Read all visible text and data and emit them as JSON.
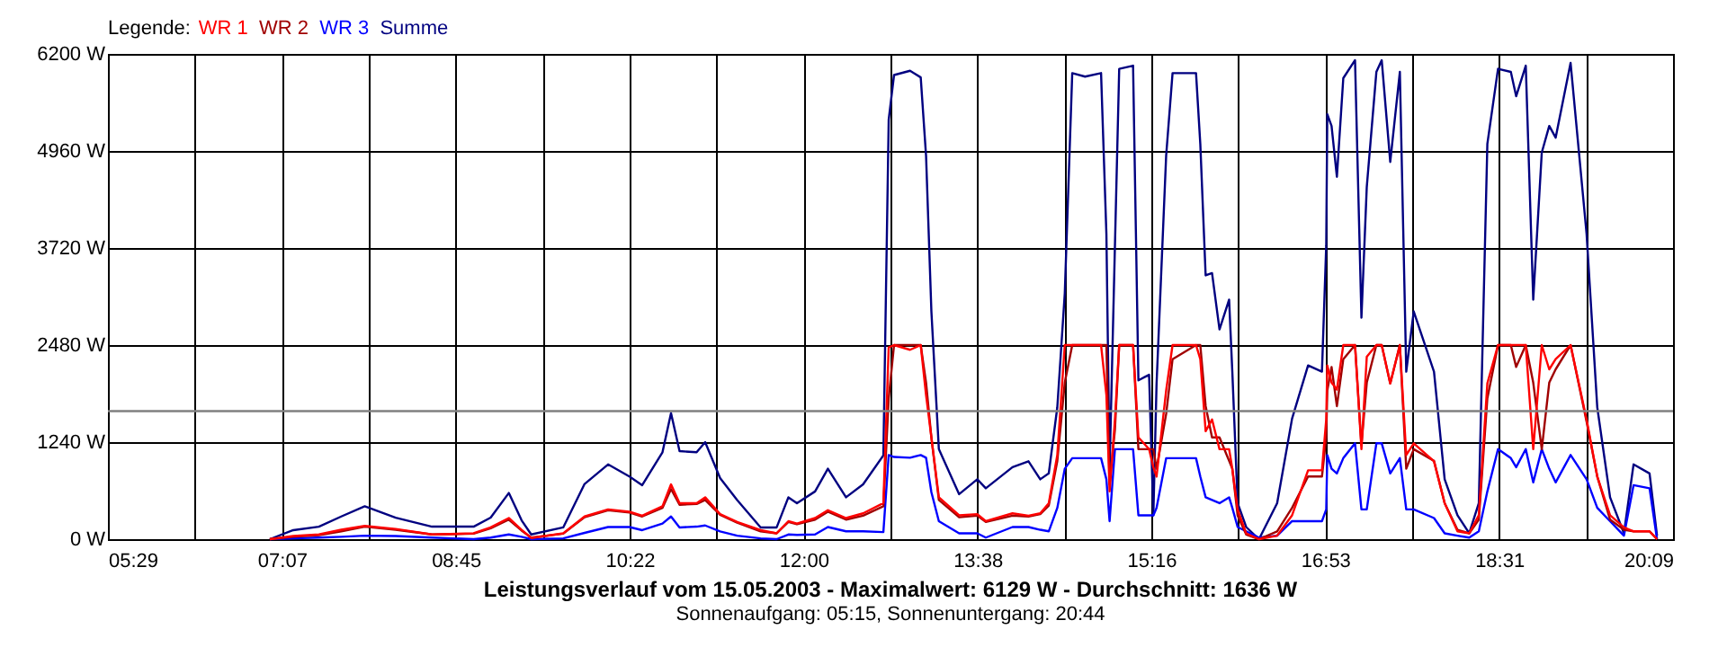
{
  "chart_data": {
    "type": "line",
    "title": "Leistungsverlauf vom 15.05.2003 - Maximalwert: 6129 W - Durchschnitt: 1636 W",
    "subtitle": "Sonnenaufgang: 05:15, Sonnenuntergang: 20:44",
    "legend_title": "Legende:",
    "legend": "top left",
    "grid": true,
    "x": [
      7.0,
      7.22,
      7.46,
      7.67,
      7.89,
      8.18,
      8.52,
      8.91,
      9.07,
      9.24,
      9.36,
      9.45,
      9.75,
      9.95,
      10.17,
      10.37,
      10.49,
      10.68,
      10.76,
      10.84,
      11.0,
      11.08,
      11.22,
      11.38,
      11.6,
      11.75,
      11.86,
      11.94,
      12.11,
      12.23,
      12.4,
      12.56,
      12.75,
      12.8,
      12.85,
      13.0,
      13.1,
      13.15,
      13.2,
      13.27,
      13.46,
      13.63,
      13.71,
      13.96,
      14.11,
      14.22,
      14.3,
      14.38,
      14.45,
      14.52,
      14.64,
      14.79,
      14.84,
      14.87,
      14.92,
      14.96,
      15.09,
      15.14,
      15.24,
      15.28,
      15.31,
      15.4,
      15.46,
      15.68,
      15.72,
      15.77,
      15.83,
      15.9,
      15.99,
      16.02,
      16.07,
      16.15,
      16.27,
      16.44,
      16.58,
      16.73,
      16.86,
      16.9,
      16.91,
      16.95,
      17.0,
      17.06,
      17.17,
      17.23,
      17.28,
      17.37,
      17.42,
      17.5,
      17.59,
      17.65,
      17.72,
      17.91,
      18.01,
      18.13,
      18.24,
      18.33,
      18.41,
      18.51,
      18.63,
      18.68,
      18.77,
      18.84,
      18.92,
      18.99,
      19.05,
      19.19,
      19.34,
      19.44,
      19.56,
      19.69,
      19.78,
      19.93,
      20.0
    ],
    "series": [
      {
        "name": "WR 1",
        "color": "#ff0000",
        "values": [
          0,
          40,
          60,
          120,
          170,
          130,
          60,
          75,
          150,
          270,
          120,
          15,
          75,
          290,
          380,
          350,
          300,
          420,
          700,
          460,
          460,
          535,
          320,
          220,
          115,
          75,
          230,
          200,
          270,
          370,
          270,
          330,
          460,
          2450,
          2480,
          2420,
          2480,
          1840,
          1300,
          535,
          305,
          320,
          230,
          330,
          300,
          330,
          460,
          1075,
          2480,
          2480,
          2480,
          2480,
          1840,
          610,
          1530,
          2480,
          2480,
          1300,
          1150,
          920,
          800,
          1900,
          2480,
          2480,
          2300,
          1380,
          1530,
          1150,
          1150,
          900,
          380,
          75,
          0,
          45,
          305,
          880,
          880,
          1530,
          2220,
          2000,
          1910,
          2480,
          2480,
          1150,
          2330,
          2480,
          2480,
          1990,
          2480,
          1075,
          1225,
          995,
          460,
          100,
          75,
          305,
          1990,
          2480,
          2480,
          2480,
          2480,
          1150,
          2480,
          2170,
          2300,
          2480,
          1530,
          800,
          305,
          150,
          100,
          100,
          0
        ]
      },
      {
        "name": "WR 2",
        "color": "#a00000",
        "values": [
          0,
          30,
          50,
          100,
          160,
          120,
          60,
          70,
          140,
          250,
          110,
          20,
          70,
          280,
          370,
          340,
          290,
          400,
          640,
          440,
          450,
          500,
          310,
          210,
          100,
          75,
          220,
          190,
          250,
          350,
          250,
          300,
          420,
          1800,
          2480,
          2480,
          2480,
          2000,
          1300,
          500,
          280,
          300,
          220,
          300,
          290,
          320,
          430,
          1000,
          2000,
          2480,
          2480,
          2480,
          2480,
          700,
          1400,
          2480,
          2480,
          1150,
          1150,
          1150,
          900,
          1600,
          2300,
          2480,
          2480,
          1700,
          1300,
          1300,
          1000,
          900,
          300,
          60,
          0,
          100,
          400,
          800,
          800,
          1300,
          1900,
          2200,
          1700,
          2300,
          2480,
          1200,
          2000,
          2480,
          2480,
          1990,
          2480,
          900,
          1150,
          1000,
          460,
          120,
          75,
          250,
          1800,
          2480,
          2480,
          2200,
          2480,
          2000,
          1150,
          2000,
          2170,
          2480,
          1500,
          800,
          250,
          120,
          100,
          100,
          0
        ]
      },
      {
        "name": "WR 3",
        "color": "#0000ff",
        "values": [
          0,
          10,
          20,
          30,
          45,
          40,
          20,
          0,
          20,
          60,
          30,
          0,
          10,
          80,
          155,
          155,
          115,
          200,
          290,
          150,
          160,
          175,
          100,
          45,
          10,
          0,
          60,
          55,
          60,
          155,
          100,
          100,
          90,
          1075,
          1050,
          1040,
          1075,
          1040,
          600,
          230,
          75,
          75,
          20,
          155,
          155,
          120,
          100,
          400,
          900,
          1035,
          1035,
          1035,
          765,
          230,
          1150,
          1150,
          1150,
          305,
          305,
          305,
          400,
          1035,
          1035,
          1035,
          800,
          535,
          500,
          460,
          535,
          400,
          155,
          100,
          20,
          45,
          230,
          230,
          230,
          380,
          1075,
          900,
          840,
          1035,
          1225,
          380,
          380,
          1225,
          1225,
          840,
          1035,
          380,
          380,
          270,
          75,
          45,
          20,
          100,
          610,
          1150,
          1035,
          920,
          1150,
          725,
          1150,
          900,
          725,
          1075,
          765,
          400,
          230,
          45,
          690,
          650,
          0
        ]
      },
      {
        "name": "Summe",
        "color": "#000080",
        "values": [
          0,
          115,
          160,
          290,
          420,
          275,
          160,
          160,
          275,
          590,
          240,
          60,
          150,
          705,
          955,
          800,
          690,
          1110,
          1610,
          1125,
          1110,
          1240,
          780,
          500,
          150,
          150,
          535,
          460,
          610,
          900,
          535,
          700,
          1070,
          5360,
          5930,
          5985,
          5900,
          4900,
          2910,
          1150,
          575,
          765,
          650,
          920,
          995,
          765,
          840,
          1685,
          3140,
          5955,
          5910,
          5955,
          3900,
          900,
          3750,
          6010,
          6050,
          2030,
          2100,
          305,
          1980,
          4900,
          5955,
          5955,
          5050,
          3370,
          3400,
          2680,
          3060,
          2140,
          460,
          155,
          0,
          460,
          1540,
          2220,
          2140,
          3750,
          5430,
          5280,
          4630,
          5890,
          6120,
          2830,
          4500,
          5970,
          6120,
          4820,
          5970,
          2140,
          2910,
          2140,
          765,
          305,
          75,
          460,
          5050,
          6010,
          5970,
          5660,
          6050,
          3060,
          4940,
          5280,
          5130,
          6085,
          3900,
          1685,
          535,
          75,
          955,
          840,
          45
        ]
      }
    ],
    "xlim": [
      5.4833,
      20.15
    ],
    "xticks": [
      {
        "value": 5.4833,
        "label": "05:29"
      },
      {
        "value": 6.2981,
        "label": null
      },
      {
        "value": 7.113,
        "label": "07:07"
      },
      {
        "value": 7.9278,
        "label": null
      },
      {
        "value": 8.7426,
        "label": "08:45"
      },
      {
        "value": 9.5574,
        "label": null
      },
      {
        "value": 10.3722,
        "label": "10:22"
      },
      {
        "value": 11.187,
        "label": null
      },
      {
        "value": 12.0019,
        "label": "12:00"
      },
      {
        "value": 12.8167,
        "label": null
      },
      {
        "value": 13.6315,
        "label": "13:38"
      },
      {
        "value": 14.4463,
        "label": null
      },
      {
        "value": 15.2611,
        "label": "15:16"
      },
      {
        "value": 16.0759,
        "label": null
      },
      {
        "value": 16.8907,
        "label": "16:53"
      },
      {
        "value": 17.7056,
        "label": null
      },
      {
        "value": 18.5204,
        "label": "18:31"
      },
      {
        "value": 19.3352,
        "label": null
      },
      {
        "value": 20.15,
        "label": "20:09"
      }
    ],
    "ylim": [
      0,
      6200
    ],
    "yticks": [
      {
        "value": 0,
        "label": "0 W"
      },
      {
        "value": 1240,
        "label": "1240 W"
      },
      {
        "value": 2480,
        "label": "2480 W"
      },
      {
        "value": 3720,
        "label": "3720 W"
      },
      {
        "value": 4960,
        "label": "4960 W"
      },
      {
        "value": 6200,
        "label": "6200 W"
      }
    ],
    "ref_lines": [
      {
        "axis": "y",
        "value": 1636,
        "color": "#808080"
      }
    ]
  }
}
